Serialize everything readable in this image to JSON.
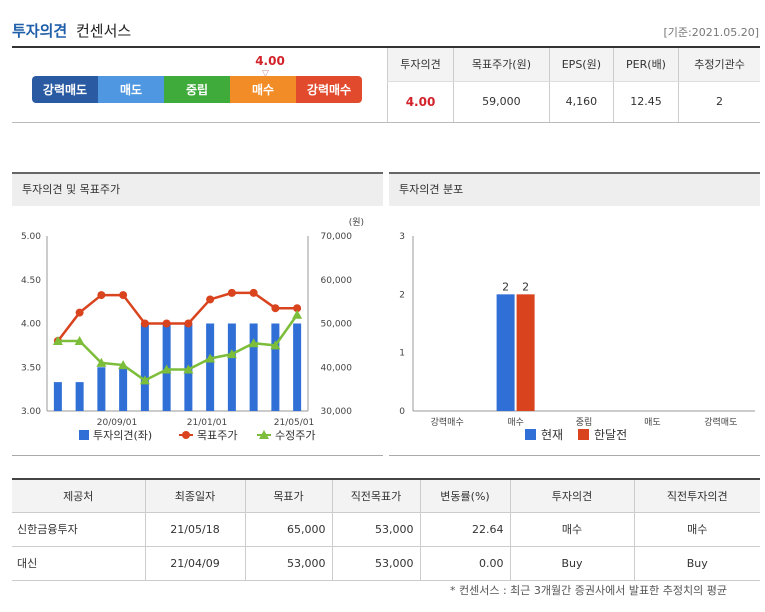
{
  "header": {
    "title_main": "투자의견",
    "title_sub": "컨센서스",
    "as_of": "[기준:2021.05.20]"
  },
  "opinion_scale": {
    "segments": [
      "강력매도",
      "매도",
      "중립",
      "매수",
      "강력매수"
    ],
    "colors": [
      "#2a5aa2",
      "#4f97e0",
      "#3fab3a",
      "#f28c26",
      "#e14a2c"
    ],
    "marker_value": "4.00",
    "marker_icon": "triangle-down-icon"
  },
  "summary": {
    "headers": [
      "투자의견",
      "목표주가(원)",
      "EPS(원)",
      "PER(배)",
      "추정기관수"
    ],
    "values": [
      "4.00",
      "59,000",
      "4,160",
      "12.45",
      "2"
    ]
  },
  "panel1": {
    "title": "투자의견 및 목표주가",
    "chart_data": {
      "type": "bar",
      "left_axis_ticks": [
        "5.00",
        "4.50",
        "4.00",
        "3.50",
        "3.00"
      ],
      "right_axis_ticks": [
        "70,000",
        "60,000",
        "50,000",
        "40,000",
        "30,000"
      ],
      "right_unit": "(원)",
      "x_tick_labels": [
        "20/09/01",
        "21/01/01",
        "21/05/01"
      ],
      "ylim_left": [
        3.0,
        5.0
      ],
      "ylim_right": [
        30000,
        70000
      ],
      "series": [
        {
          "name": "투자의견(좌)",
          "axis": "left",
          "type": "bar",
          "color": "#2f6fd6",
          "values": [
            3.33,
            3.33,
            3.5,
            3.5,
            4.0,
            4.0,
            4.0,
            4.0,
            4.0,
            4.0,
            4.0,
            4.0
          ]
        },
        {
          "name": "목표주가",
          "axis": "right",
          "type": "line",
          "color": "#d9431e",
          "values": [
            46000,
            52500,
            56500,
            56500,
            50000,
            50000,
            50000,
            55500,
            57000,
            57000,
            53500,
            53500
          ]
        },
        {
          "name": "수정주가",
          "axis": "right",
          "type": "line",
          "color": "#7cbd3a",
          "values": [
            46000,
            46000,
            41000,
            40500,
            37000,
            39500,
            39500,
            42000,
            43000,
            45500,
            45000,
            52000
          ]
        }
      ],
      "legend": [
        "투자의견(좌)",
        "목표주가",
        "수정주가"
      ],
      "grid": false
    }
  },
  "panel2": {
    "title": "투자의견 분포",
    "chart_data": {
      "type": "bar",
      "categories": [
        "강력매수",
        "매수",
        "중립",
        "매도",
        "강력매도"
      ],
      "y_ticks": [
        "3",
        "2",
        "1",
        "0"
      ],
      "ylim": [
        0,
        3
      ],
      "series": [
        {
          "name": "현재",
          "color": "#2f6fd6",
          "values": [
            0,
            2,
            0,
            0,
            0
          ]
        },
        {
          "name": "한달전",
          "color": "#d9431e",
          "values": [
            0,
            2,
            0,
            0,
            0
          ]
        }
      ],
      "data_labels": [
        "2",
        "2"
      ],
      "legend": [
        "현재",
        "한달전"
      ]
    }
  },
  "details": {
    "headers": [
      "제공처",
      "최종일자",
      "목표가",
      "직전목표가",
      "변동률(%)",
      "투자의견",
      "직전투자의견"
    ],
    "rows": [
      [
        "신한금융투자",
        "21/05/18",
        "65,000",
        "53,000",
        "22.64",
        "매수",
        "매수"
      ],
      [
        "대신",
        "21/04/09",
        "53,000",
        "53,000",
        "0.00",
        "Buy",
        "Buy"
      ]
    ]
  },
  "footnote": "* 컨센서스 : 최근 3개월간 증권사에서 발표한 추정치의 평균"
}
